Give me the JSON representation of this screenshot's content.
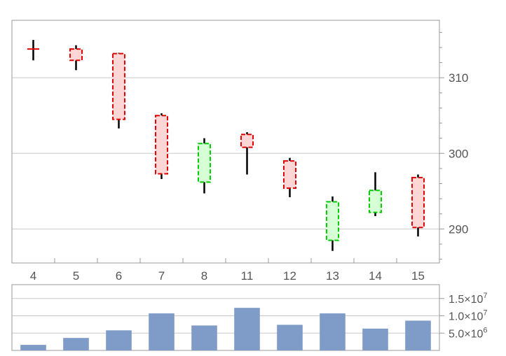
{
  "colors": {
    "up_fill": "#d6ffd6",
    "up_edge": "#00cc00",
    "down_fill": "#ffd6d6",
    "down_edge": "#e00000",
    "wick": "#000000",
    "volume_bar": "#7f9bc8",
    "grid": "#c8c8c8",
    "frame": "#999999"
  },
  "chart_data": [
    {
      "type": "candlestick",
      "title": "",
      "categories": [
        "4",
        "5",
        "6",
        "7",
        "8",
        "11",
        "12",
        "13",
        "14",
        "15"
      ],
      "open": [
        313.8,
        313.8,
        313.2,
        305.0,
        296.2,
        302.5,
        299.0,
        288.5,
        292.2,
        296.8
      ],
      "high": [
        315.0,
        314.3,
        313.3,
        305.3,
        302.0,
        302.8,
        299.4,
        294.3,
        297.5,
        297.2
      ],
      "low": [
        312.3,
        311.0,
        303.3,
        296.6,
        294.7,
        297.2,
        294.2,
        287.1,
        291.7,
        289.0
      ],
      "close": [
        313.8,
        312.3,
        304.5,
        297.3,
        301.3,
        300.8,
        295.4,
        293.6,
        295.1,
        290.2
      ],
      "y_ticks": [
        290,
        300,
        310
      ],
      "ylim": [
        285.5,
        317.6
      ],
      "grid": true,
      "y_axis_side": "right"
    },
    {
      "type": "bar",
      "title": "",
      "categories": [
        "4",
        "5",
        "6",
        "7",
        "8",
        "11",
        "12",
        "13",
        "14",
        "15"
      ],
      "values": [
        1600000,
        3600000,
        5800000,
        10700000,
        7200000,
        12300000,
        7400000,
        10700000,
        6300000,
        8600000
      ],
      "y_ticks": [
        {
          "value": 5000000,
          "mantissa": "5.0",
          "exponent": "6"
        },
        {
          "value": 10000000,
          "mantissa": "1.0",
          "exponent": "7"
        },
        {
          "value": 15000000,
          "mantissa": "1.5",
          "exponent": "7"
        }
      ],
      "times_sign": "×",
      "exp_base": "10",
      "ylim": [
        0,
        19000000
      ],
      "grid": true,
      "y_axis_side": "right"
    }
  ]
}
